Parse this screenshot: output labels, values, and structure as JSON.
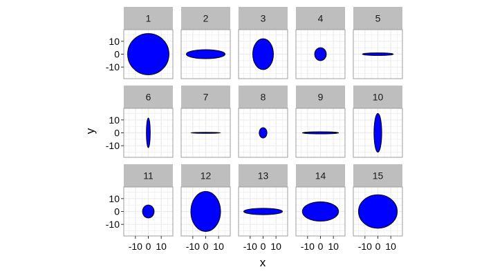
{
  "chart_data": {
    "type": "faceted-ellipse",
    "xlabel": "x",
    "ylabel": "y",
    "xlim": [
      -19,
      19
    ],
    "ylim": [
      -19,
      19
    ],
    "x_ticks": [
      -10,
      0,
      10
    ],
    "x_tick_labels": [
      "-10",
      "0",
      "10"
    ],
    "y_ticks": [
      -10,
      0,
      10
    ],
    "y_tick_labels": [
      "-10",
      "0",
      "10"
    ],
    "grid": true,
    "facet_rows": 3,
    "facet_cols": 5,
    "fill_color": "#0000ff",
    "stroke_color": "#000000",
    "strip_fill": "#bebebe",
    "panel_border": "#9e9e9e",
    "grid_color": "#ebebeb",
    "facets": [
      {
        "label": "1",
        "x": 0,
        "y": 0,
        "rx": 16,
        "ry": 16
      },
      {
        "label": "2",
        "x": 0,
        "y": 0,
        "rx": 15,
        "ry": 3.5
      },
      {
        "label": "3",
        "x": 0,
        "y": 0,
        "rx": 8,
        "ry": 12
      },
      {
        "label": "4",
        "x": 0,
        "y": 0,
        "rx": 4.5,
        "ry": 5
      },
      {
        "label": "5",
        "x": 0,
        "y": 0,
        "rx": 12,
        "ry": 1
      },
      {
        "label": "6",
        "x": 0,
        "y": 0,
        "rx": 1.5,
        "ry": 11.5
      },
      {
        "label": "7",
        "x": 0,
        "y": 0,
        "rx": 11.5,
        "ry": 0.4
      },
      {
        "label": "8",
        "x": 0,
        "y": 0,
        "rx": 3,
        "ry": 4
      },
      {
        "label": "9",
        "x": 0,
        "y": 0,
        "rx": 14,
        "ry": 0.8
      },
      {
        "label": "10",
        "x": 0,
        "y": 0,
        "rx": 3,
        "ry": 15
      },
      {
        "label": "11",
        "x": 0,
        "y": 0,
        "rx": 4.5,
        "ry": 5
      },
      {
        "label": "12",
        "x": 0,
        "y": 0,
        "rx": 11.5,
        "ry": 15.5
      },
      {
        "label": "13",
        "x": 0,
        "y": 0,
        "rx": 15,
        "ry": 2.5
      },
      {
        "label": "14",
        "x": 0,
        "y": 0,
        "rx": 14,
        "ry": 7.5
      },
      {
        "label": "15",
        "x": 0,
        "y": 0,
        "rx": 15,
        "ry": 13
      }
    ]
  }
}
